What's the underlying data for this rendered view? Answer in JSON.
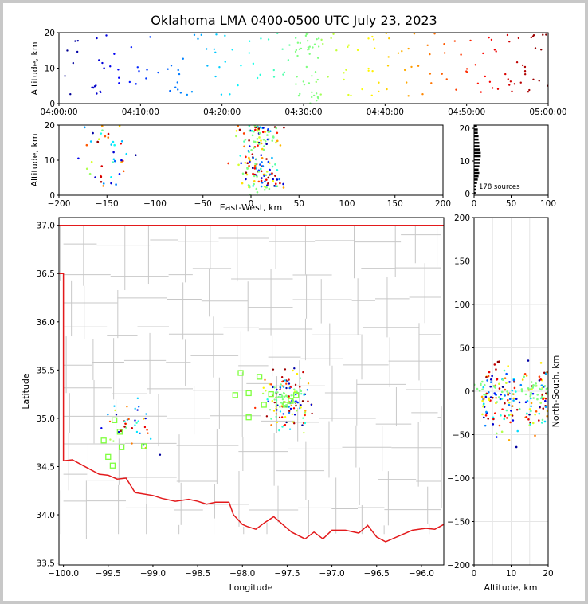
{
  "title": "Oklahoma LMA 0400-0500 UTC July 23, 2023",
  "colors": {
    "frame_bg": "#c8c8c8",
    "border": "#e31a1c",
    "county": "#c8c8c8",
    "station": "#7fff3f",
    "grid": "#e6e6e6"
  },
  "chart_data": [
    {
      "type": "scatter",
      "name": "time-altitude",
      "xlabel": "",
      "ylabel": "Altitude, km",
      "xlim_minutes": [
        0,
        60
      ],
      "ylim": [
        0,
        20
      ],
      "xticks": [
        "04:00:00",
        "04:10:00",
        "04:20:00",
        "04:30:00",
        "04:40:00",
        "04:50:00",
        "05:00:00"
      ],
      "yticks": [
        "0",
        "10",
        "20"
      ]
    },
    {
      "type": "scatter",
      "name": "eastwest-altitude",
      "xlabel": "East-West, km",
      "ylabel": "Altitude, km",
      "xlim": [
        -200,
        200
      ],
      "ylim": [
        0,
        20
      ],
      "xticks": [
        "−200",
        "−150",
        "−100",
        "−50",
        "0",
        "50",
        "100",
        "150",
        "200"
      ],
      "yticks": [
        "0",
        "10",
        "20"
      ]
    },
    {
      "type": "histogram",
      "name": "altitude-histogram",
      "xlim": [
        0,
        100
      ],
      "ylim": [
        0,
        20
      ],
      "xticks": [
        "0",
        "50",
        "100"
      ],
      "yticks": [
        "0",
        "10",
        "20"
      ],
      "annotation": "178 sources"
    },
    {
      "type": "map",
      "name": "plan-view",
      "xlabel": "Longitude",
      "ylabel": "Latitude",
      "xlim": [
        -100.05,
        -95.75
      ],
      "ylim": [
        33.48,
        37.08
      ],
      "xticks": [
        "−100.0",
        "−99.5",
        "−99.0",
        "−98.5",
        "−98.0",
        "−97.5",
        "−97.0",
        "−96.5",
        "−96.0"
      ],
      "yticks": [
        "33.5",
        "34.0",
        "34.5",
        "35.0",
        "35.5",
        "36.0",
        "36.5",
        "37.0"
      ],
      "stations": [
        {
          "lon": -99.43,
          "lat": 34.98
        },
        {
          "lon": -99.55,
          "lat": 34.77
        },
        {
          "lon": -99.37,
          "lat": 34.86
        },
        {
          "lon": -99.35,
          "lat": 34.7
        },
        {
          "lon": -99.5,
          "lat": 34.6
        },
        {
          "lon": -99.45,
          "lat": 34.51
        },
        {
          "lon": -99.1,
          "lat": 34.71
        },
        {
          "lon": -98.08,
          "lat": 35.24
        },
        {
          "lon": -98.02,
          "lat": 35.47
        },
        {
          "lon": -97.93,
          "lat": 35.26
        },
        {
          "lon": -97.81,
          "lat": 35.43
        },
        {
          "lon": -97.93,
          "lat": 35.01
        },
        {
          "lon": -97.76,
          "lat": 35.14
        },
        {
          "lon": -97.68,
          "lat": 35.25
        },
        {
          "lon": -97.52,
          "lat": 35.14
        },
        {
          "lon": -97.46,
          "lat": 35.18
        },
        {
          "lon": -97.4,
          "lat": 35.24
        }
      ]
    },
    {
      "type": "scatter",
      "name": "altitude-northsouth",
      "xlabel": "Altitude, km",
      "ylabel": "North-South, km",
      "xlim": [
        0,
        20
      ],
      "ylim": [
        -200,
        200
      ],
      "xticks": [
        "0",
        "10",
        "20"
      ],
      "yticks": [
        "−200",
        "−150",
        "−100",
        "−50",
        "0",
        "50",
        "100",
        "150",
        "200"
      ]
    }
  ]
}
